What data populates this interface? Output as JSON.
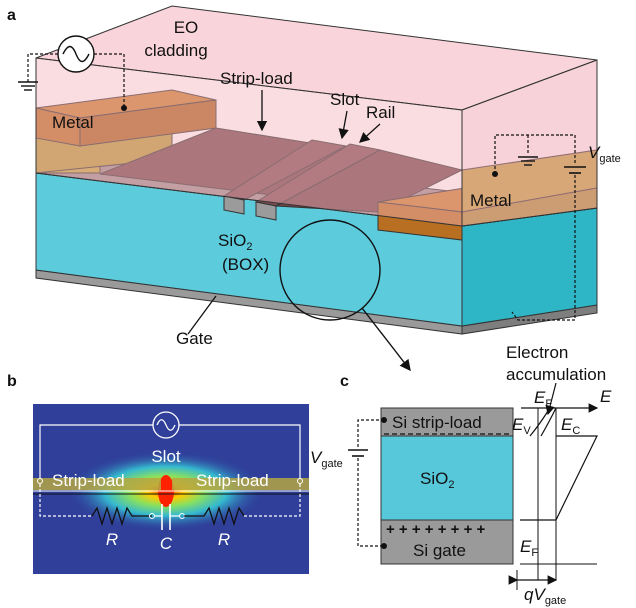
{
  "panel_a": {
    "letter": "a",
    "eo_cladding_line1": "EO",
    "eo_cladding_line2": "cladding",
    "strip_load": "Strip-load",
    "slot": "Slot",
    "rail": "Rail",
    "metal_left": "Metal",
    "metal_right": "Metal",
    "sio2_main": "SiO",
    "sio2_sub": "2",
    "box": "(BOX)",
    "gate": "Gate",
    "v_main": "V",
    "v_sub": "gate"
  },
  "panel_b": {
    "letter": "b",
    "slot": "Slot",
    "strip_load_left": "Strip-load",
    "strip_load_right": "Strip-load",
    "r_left": "R",
    "capacitor": "C",
    "r_right": "R"
  },
  "panel_c": {
    "letter": "c",
    "electron_line1": "Electron",
    "electron_line2": "accumulation",
    "si_strip_load": "Si strip-load",
    "sio2_main": "SiO",
    "sio2_sub": "2",
    "si_gate": "Si gate",
    "plus_row": "+ + + + + + + +",
    "v_main": "V",
    "v_sub": "gate",
    "ef_top_main": "E",
    "ef_top_sub": "F",
    "e_axis": "E",
    "ev_main": "E",
    "ev_sub": "V",
    "ec_main": "E",
    "ec_sub": "C",
    "ef_bot_main": "E",
    "ef_bot_sub": "F",
    "qv_q": "q",
    "qv_main": "V",
    "qv_sub": "gate"
  },
  "colors": {
    "cladding": "#f4b3bd",
    "metal": "#c97e2e",
    "gold_layer": "#bfa63c",
    "si_dark": "#6f4448",
    "box": "#57c8da",
    "gate": "#9a9a9a",
    "field_bg": "#2f3f9a"
  }
}
